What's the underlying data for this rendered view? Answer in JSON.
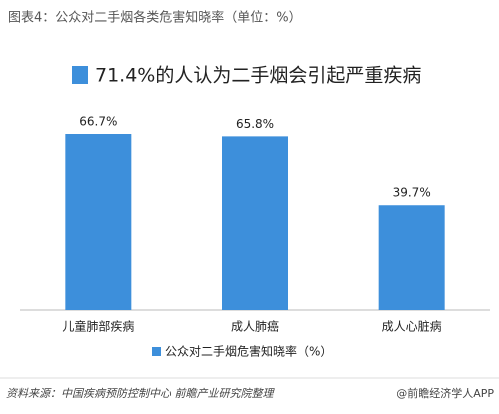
{
  "chart_data": {
    "type": "bar",
    "title": "图表4：公众对二手烟各类危害知晓率（单位：%）",
    "subtitle": "71.4%的人认为二手烟会引起严重疾病",
    "categories": [
      "儿童肺部疾病",
      "成人肺癌",
      "成人心脏病"
    ],
    "series": [
      {
        "name": "公众对二手烟危害知晓率（%）",
        "color": "#3d8fdb",
        "values": [
          66.7,
          65.8,
          39.7
        ],
        "value_labels": [
          "66.7%",
          "65.8%",
          "39.7%"
        ]
      }
    ]
  },
  "source": "资料来源：中国疾病预防控制中心 前瞻产业研究院整理",
  "credit": "@前瞻经济学人APP"
}
